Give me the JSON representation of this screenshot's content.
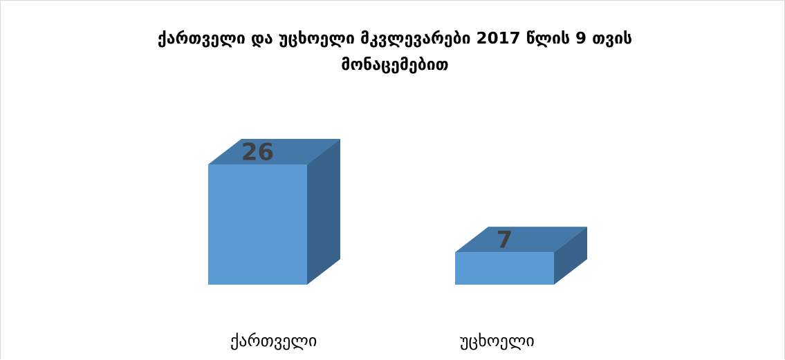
{
  "chart_data": {
    "type": "bar",
    "title": "ქართველი და უცხოელი მკვლევარები 2017 წლის 9 თვის მონაცემებით",
    "categories": [
      "ქართველი",
      "უცხოელი"
    ],
    "values": [
      26,
      7
    ],
    "data_labels": [
      "26",
      "7"
    ],
    "ylim": [
      0,
      26
    ],
    "grid": false,
    "legend": "none",
    "colors": {
      "front": "#5b9bd5",
      "top": "#4478a9",
      "side": "#3a638b"
    }
  }
}
